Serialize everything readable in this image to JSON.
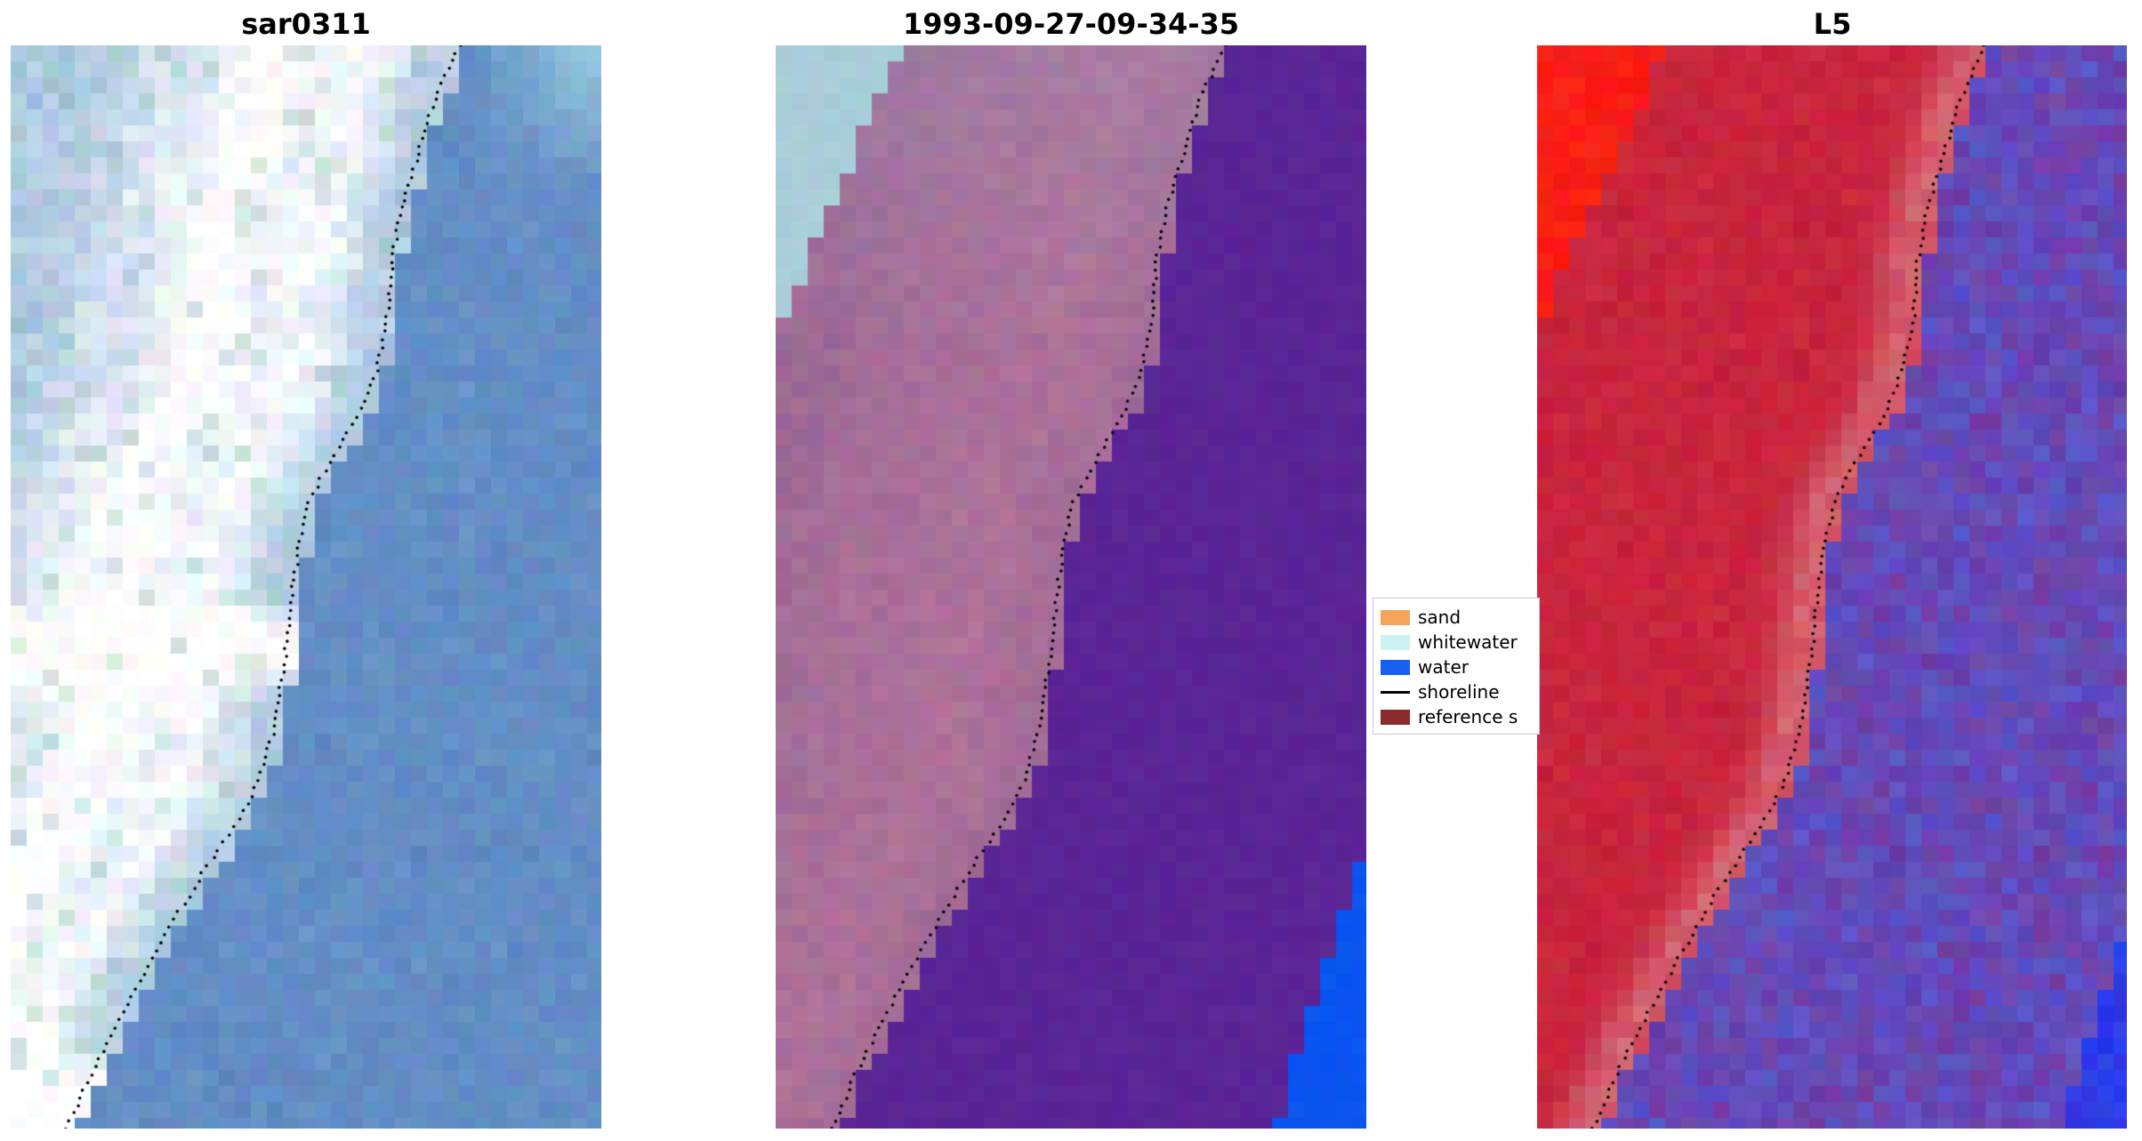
{
  "panels": [
    {
      "id": "sar0311",
      "title": "sar0311",
      "type": "sar",
      "colors": {
        "water": "#5f8ac2",
        "water2": "#6d97cc",
        "corner": "#9fd4e4",
        "land": "#8fb4d4",
        "bright": "#ffffff",
        "tint": "#8fc0b4"
      }
    },
    {
      "id": "classified",
      "title": "1993-09-27-09-34-35",
      "type": "classified",
      "colors": {
        "corner": "#a9cdd9",
        "patch": "#0a55f0",
        "water": "#5a2596",
        "land": "#926693",
        "land2": "#b4749a",
        "landTop": "#a38aab"
      }
    },
    {
      "id": "L5",
      "title": "L5",
      "type": "landsat",
      "colors": {
        "corner": "#fa1e14",
        "patch": "#2d3ce8",
        "water": "#6a41ad",
        "water2": "#5a55c8",
        "water3": "#7a3a9a",
        "land": "#c6203a",
        "land2": "#d13448",
        "shorePale": "#d98a92"
      }
    }
  ],
  "legend": {
    "entries": [
      {
        "label": "sand",
        "color": "#f5a45c",
        "kind": "swatch"
      },
      {
        "label": "whitewater",
        "color": "#ccf2f2",
        "kind": "swatch"
      },
      {
        "label": "water",
        "color": "#155ff2",
        "kind": "swatch"
      },
      {
        "label": "shoreline",
        "color": "#000000",
        "kind": "line"
      },
      {
        "label": "reference s",
        "color": "#8b2b2b",
        "kind": "swatch"
      }
    ]
  },
  "shoreline": {
    "dot_color": "#000000",
    "dot_count": 140,
    "points": [
      [
        0.0,
        0.76
      ],
      [
        0.05,
        0.718
      ],
      [
        0.1,
        0.69
      ],
      [
        0.15,
        0.662
      ],
      [
        0.2,
        0.645
      ],
      [
        0.25,
        0.638
      ],
      [
        0.3,
        0.62
      ],
      [
        0.34,
        0.59
      ],
      [
        0.38,
        0.545
      ],
      [
        0.42,
        0.505
      ],
      [
        0.46,
        0.488
      ],
      [
        0.5,
        0.478
      ],
      [
        0.55,
        0.468
      ],
      [
        0.6,
        0.455
      ],
      [
        0.64,
        0.442
      ],
      [
        0.68,
        0.42
      ],
      [
        0.72,
        0.38
      ],
      [
        0.76,
        0.33
      ],
      [
        0.8,
        0.285
      ],
      [
        0.85,
        0.232
      ],
      [
        0.9,
        0.182
      ],
      [
        0.95,
        0.135
      ],
      [
        1.0,
        0.095
      ]
    ]
  },
  "chart_data": [
    {
      "type": "image",
      "title": "sar0311",
      "description": "SAR composite: blue water on right, light blue/white breaking-wave streaks on land side, dotted detected shoreline curve"
    },
    {
      "type": "image",
      "title": "1993-09-27-09-34-35",
      "description": "Classified scene: mauve land left, deep purple water right, cyan whitewater patch top-left, blue water patch bottom-right, dotted shoreline"
    },
    {
      "type": "image",
      "title": "L5",
      "description": "Landsat 5 false-colour composite: red land left with bright red patch top-left, purple water right with blue patch bottom-right, dotted shoreline"
    },
    {
      "type": "line",
      "name": "shoreline",
      "x_normalized": [
        0.76,
        0.718,
        0.69,
        0.662,
        0.645,
        0.638,
        0.62,
        0.59,
        0.545,
        0.505,
        0.488,
        0.478,
        0.468,
        0.455,
        0.442,
        0.42,
        0.38,
        0.33,
        0.285,
        0.232,
        0.182,
        0.135,
        0.095
      ],
      "y_normalized": [
        0.0,
        0.05,
        0.1,
        0.15,
        0.2,
        0.25,
        0.3,
        0.34,
        0.38,
        0.42,
        0.46,
        0.5,
        0.55,
        0.6,
        0.64,
        0.68,
        0.72,
        0.76,
        0.8,
        0.85,
        0.9,
        0.95,
        1.0
      ],
      "legend_entries": [
        "sand",
        "whitewater",
        "water",
        "shoreline",
        "reference s"
      ]
    }
  ]
}
